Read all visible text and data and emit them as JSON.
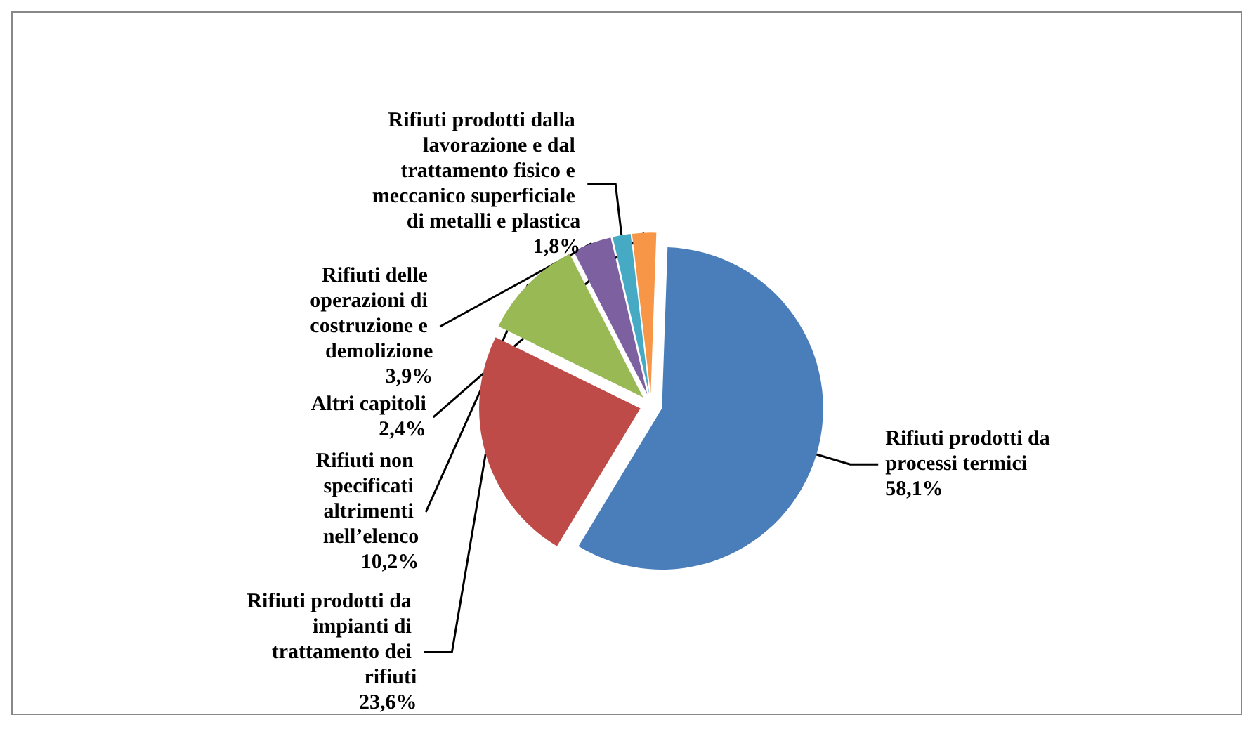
{
  "chart_data": {
    "type": "pie",
    "categories": [
      "Rifiuti prodotti da processi termici",
      "Rifiuti prodotti da impianti di trattamento dei rifiuti",
      "Rifiuti non specificati altrimenti nell’elenco",
      "Rifiuti delle operazioni di costruzione e demolizione",
      "Rifiuti prodotti dalla lavorazione e dal trattamento fisico e meccanico superficiale di metalli e plastica",
      "Altri capitoli"
    ],
    "values": [
      58.1,
      23.6,
      10.2,
      3.9,
      1.8,
      2.4
    ],
    "value_labels": [
      "58,1%",
      "23,6%",
      "10,2%",
      "3,9%",
      "1,8%",
      "2,4%"
    ],
    "colors": [
      "#4a7ebb",
      "#be4b48",
      "#98b954",
      "#7d60a0",
      "#46aac5",
      "#f79646"
    ]
  }
}
